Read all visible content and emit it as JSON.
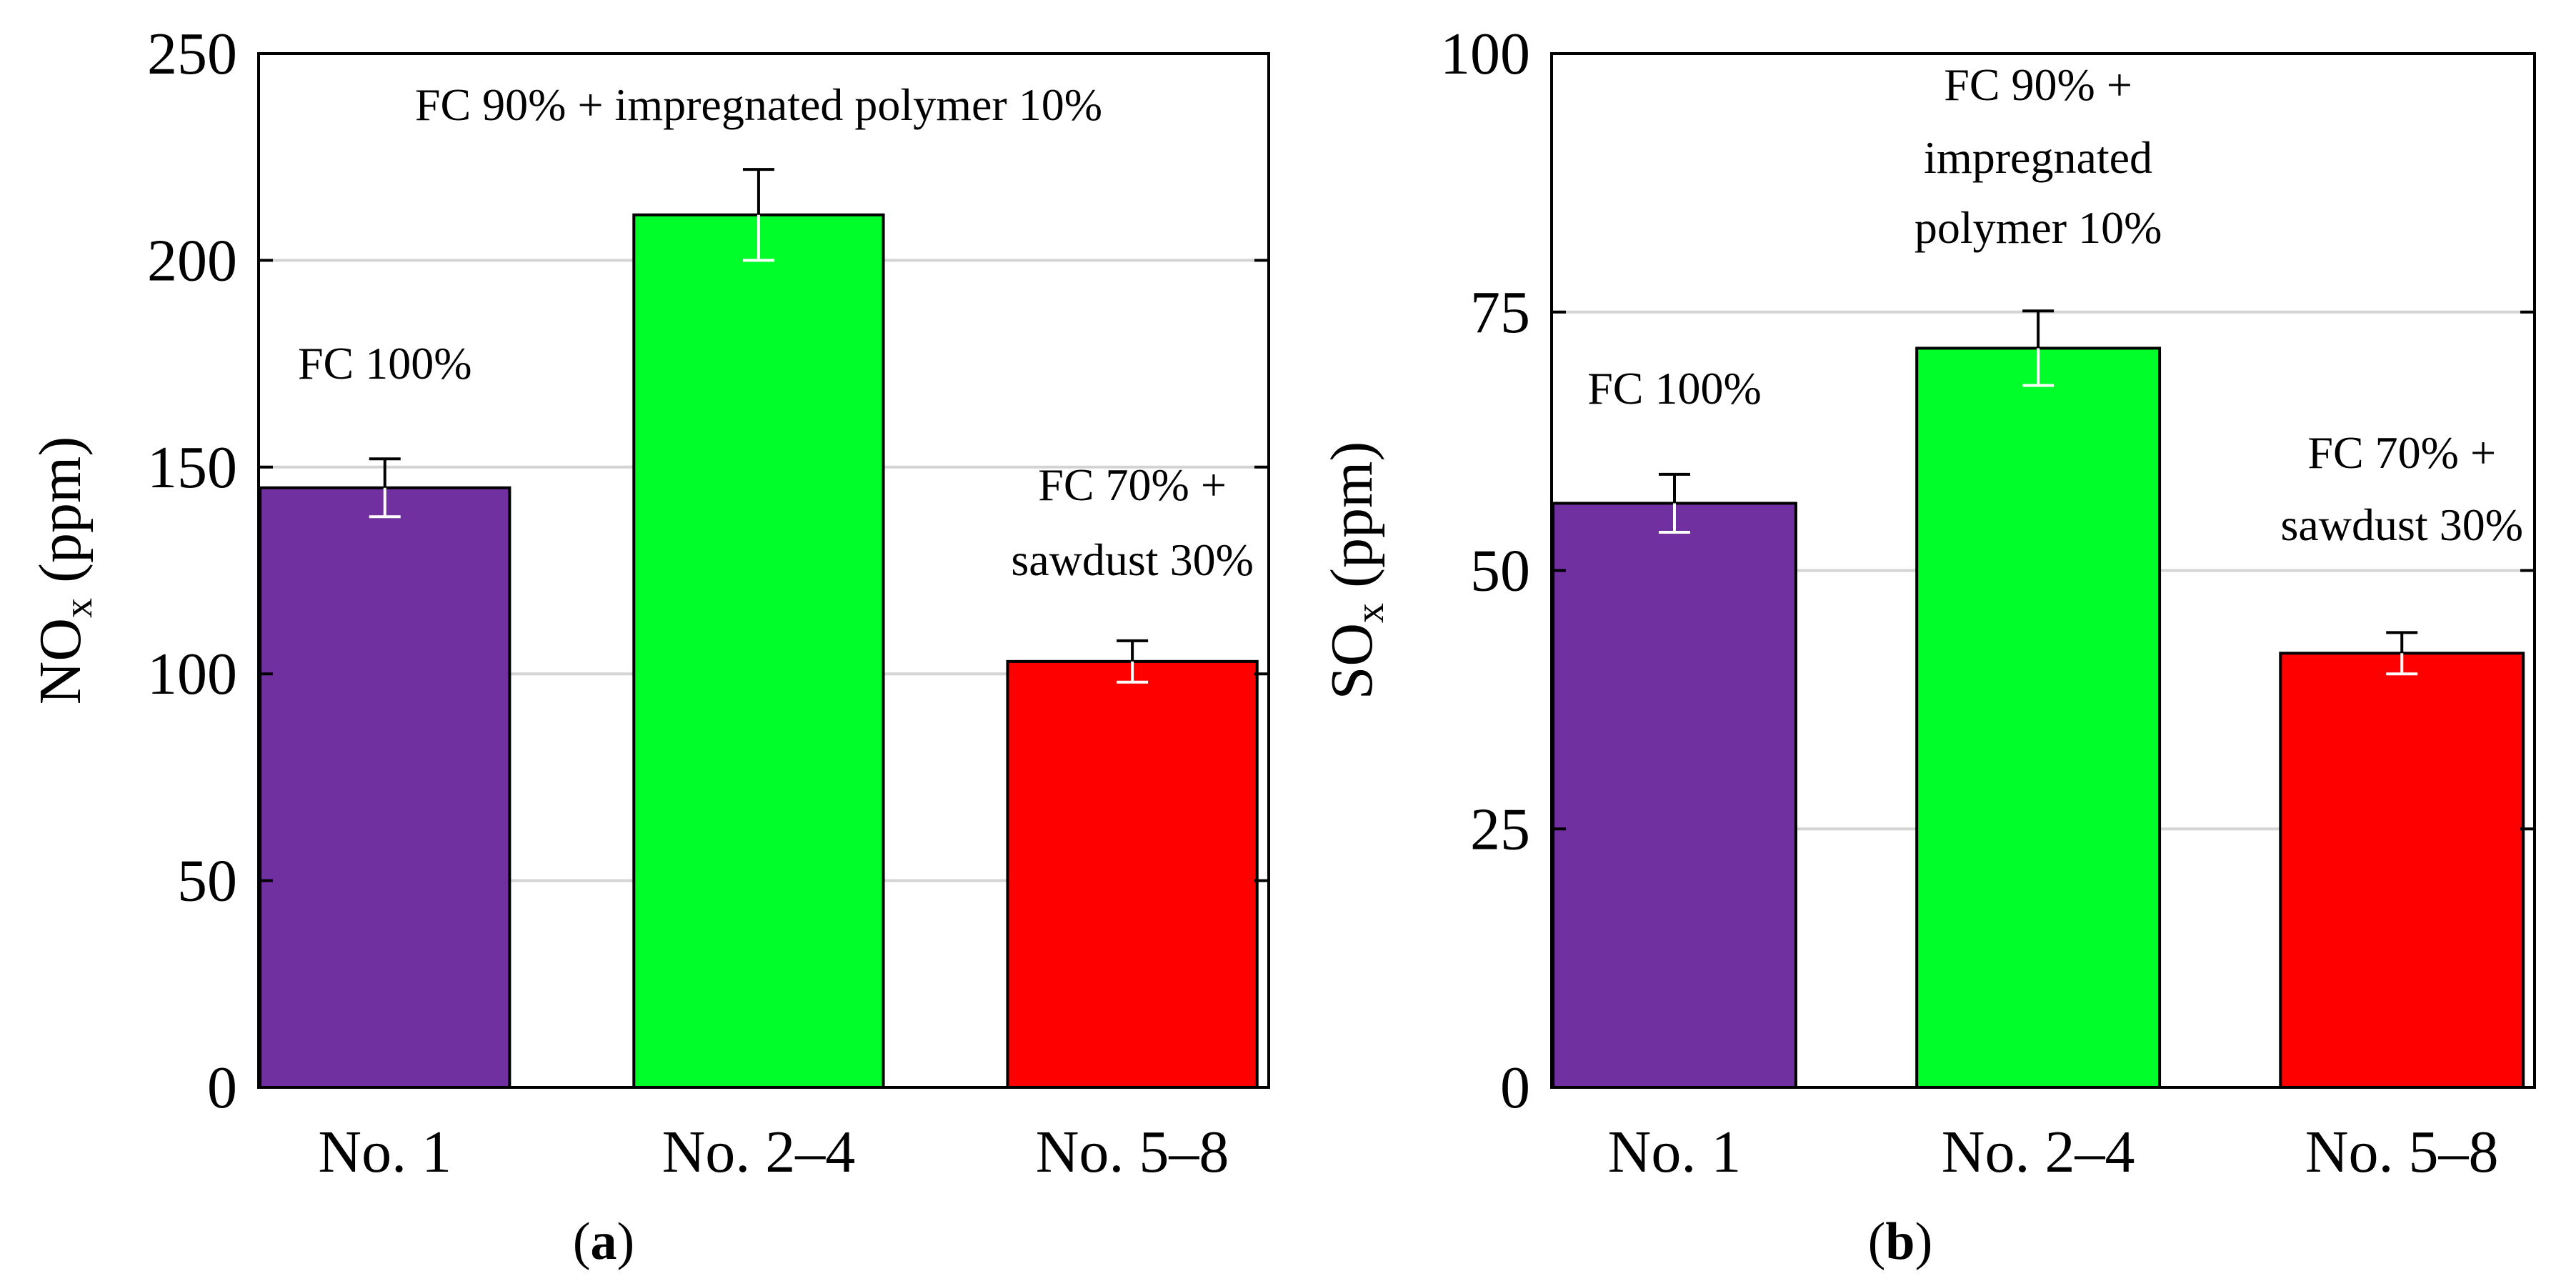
{
  "chart_data": [
    {
      "type": "bar",
      "panel_label": "a",
      "categories": [
        "No. 1",
        "No. 2–4",
        "No. 5–8"
      ],
      "values": [
        145,
        211,
        103
      ],
      "errors": [
        7,
        11,
        5
      ],
      "colors": [
        "#7030A0",
        "#00FF2A",
        "#FF0000"
      ],
      "ylabel_main": "NO",
      "ylabel_sub": "x",
      "ylabel_unit": " (ppm)",
      "xlabel": "",
      "ylim": [
        0,
        250
      ],
      "yticks": [
        0,
        50,
        100,
        150,
        200,
        250
      ],
      "grid": true,
      "annotations": [
        {
          "bar": 0,
          "lines": [
            "FC 100%"
          ]
        },
        {
          "bar": 1,
          "lines": [
            "FC 90% + impregnated polymer 10%"
          ]
        },
        {
          "bar": 2,
          "lines": [
            "FC 70% +",
            "sawdust 30%"
          ]
        }
      ]
    },
    {
      "type": "bar",
      "panel_label": "b",
      "categories": [
        "No. 1",
        "No. 2–4",
        "No. 5–8"
      ],
      "values": [
        56.5,
        71.5,
        42
      ],
      "errors": [
        2.8,
        3.6,
        2
      ],
      "colors": [
        "#7030A0",
        "#00FF2A",
        "#FF0000"
      ],
      "ylabel_main": "SO",
      "ylabel_sub": "x",
      "ylabel_unit": " (ppm)",
      "xlabel": "",
      "ylim": [
        0,
        100
      ],
      "yticks": [
        0,
        25,
        50,
        75,
        100
      ],
      "grid": true,
      "annotations": [
        {
          "bar": 0,
          "lines": [
            "FC 100%"
          ]
        },
        {
          "bar": 1,
          "lines": [
            "FC 90% +",
            "impregnated",
            "polymer 10%"
          ]
        },
        {
          "bar": 2,
          "lines": [
            "FC 70% +",
            "sawdust 30%"
          ]
        }
      ]
    }
  ]
}
